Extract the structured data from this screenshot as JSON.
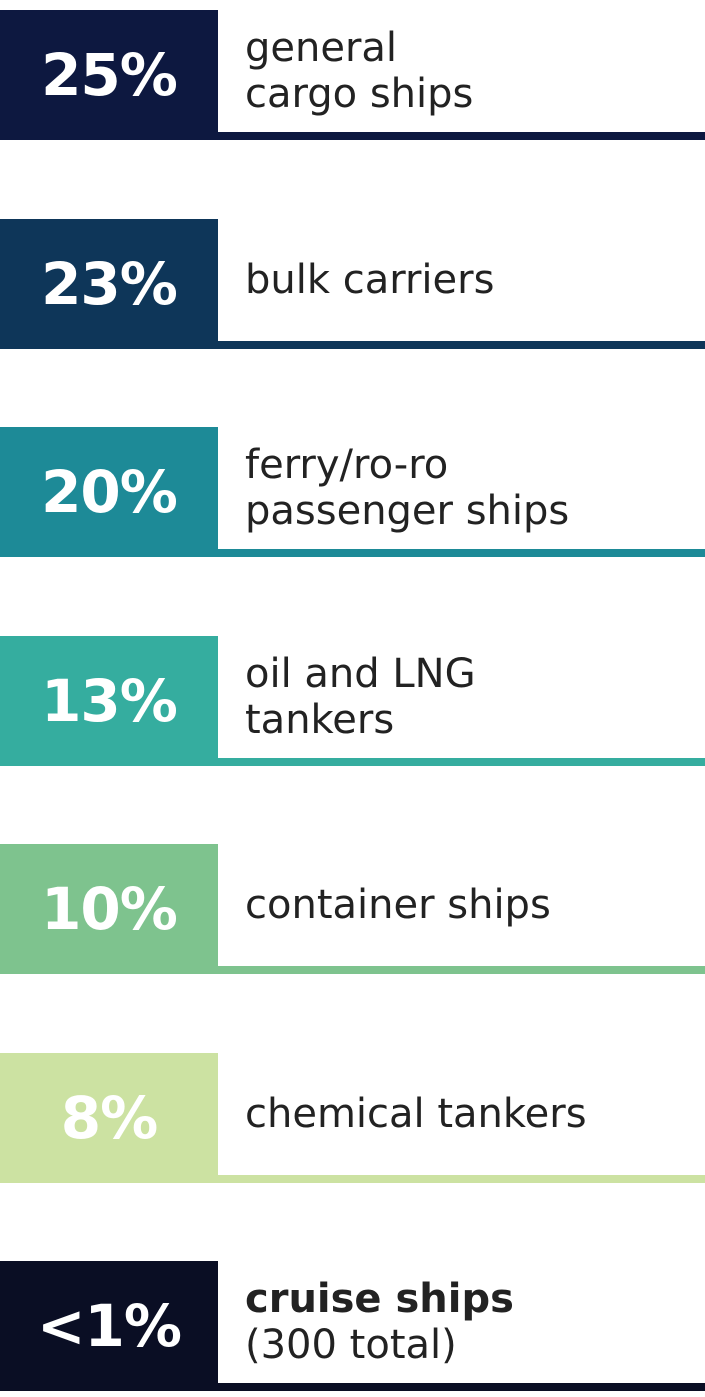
{
  "items": [
    {
      "percent": "25%",
      "lines": [
        "general",
        "cargo ships"
      ],
      "color": "#0d1840"
    },
    {
      "percent": "23%",
      "lines": [
        "bulk carriers"
      ],
      "color": "#0e3659"
    },
    {
      "percent": "20%",
      "lines": [
        "ferry/ro-ro",
        "passenger ships"
      ],
      "color": "#1d8a97"
    },
    {
      "percent": "13%",
      "lines": [
        "oil and LNG",
        "tankers"
      ],
      "color": "#35ad9f"
    },
    {
      "percent": "10%",
      "lines": [
        "container ships"
      ],
      "color": "#7ec38e"
    },
    {
      "percent": "8%",
      "lines": [
        "chemical tankers"
      ],
      "color": "#cce2a2"
    },
    {
      "percent": "<1%",
      "lines": [
        "cruise ships",
        "(300 total)"
      ],
      "color": "#0a0e24"
    }
  ]
}
